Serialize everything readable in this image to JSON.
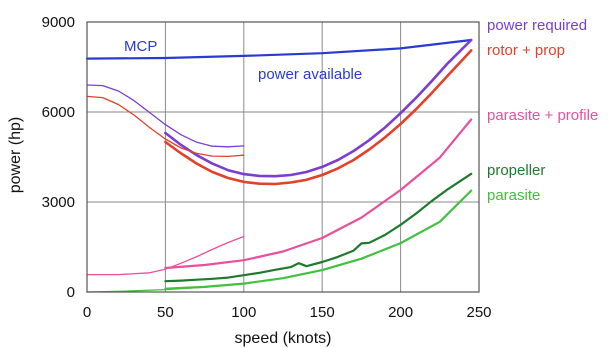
{
  "chart_data": {
    "type": "line",
    "xlabel": "speed (knots)",
    "ylabel": "power (hp)",
    "xlim": [
      0,
      250
    ],
    "ylim": [
      0,
      9000
    ],
    "xticks": [
      "0",
      "50",
      "100",
      "150",
      "200",
      "250"
    ],
    "yticks": [
      "0",
      "3000",
      "6000",
      "9000"
    ],
    "grid": "on",
    "legend": "right",
    "series": [
      {
        "key": "mcp",
        "color": "#2b3bd1",
        "width": 2.2,
        "x": [
          0,
          50,
          100,
          150,
          200,
          245
        ],
        "y": [
          7780,
          7800,
          7870,
          7960,
          8120,
          8400
        ]
      },
      {
        "key": "preq",
        "name": "power required",
        "color": "#7a3fd0",
        "width": 2.6,
        "x": [
          50,
          60,
          70,
          80,
          90,
          100,
          110,
          120,
          130,
          140,
          150,
          160,
          170,
          180,
          190,
          200,
          210,
          220,
          230,
          245
        ],
        "y": [
          5300,
          4900,
          4560,
          4280,
          4060,
          3930,
          3870,
          3860,
          3900,
          4000,
          4170,
          4400,
          4700,
          5060,
          5480,
          5960,
          6480,
          7040,
          7620,
          8400
        ]
      },
      {
        "key": "rotor",
        "name": "rotor + prop",
        "color": "#e2412a",
        "width": 2.6,
        "x": [
          50,
          60,
          70,
          80,
          90,
          100,
          110,
          120,
          130,
          140,
          150,
          160,
          170,
          180,
          190,
          200,
          210,
          220,
          230,
          245
        ],
        "y": [
          5000,
          4620,
          4280,
          4000,
          3800,
          3670,
          3610,
          3600,
          3650,
          3740,
          3900,
          4120,
          4400,
          4750,
          5150,
          5600,
          6100,
          6640,
          7210,
          8050
        ]
      },
      {
        "key": "preq_lo",
        "color": "#7a3fd0",
        "width": 1.3,
        "x": [
          0,
          10,
          20,
          30,
          40,
          50,
          60,
          70,
          80,
          90,
          100
        ],
        "y": [
          6900,
          6880,
          6700,
          6380,
          5980,
          5580,
          5240,
          4990,
          4860,
          4840,
          4870
        ]
      },
      {
        "key": "rotor_lo",
        "color": "#e2412a",
        "width": 1.3,
        "x": [
          0,
          10,
          20,
          30,
          40,
          50,
          60,
          70,
          80,
          90,
          100
        ],
        "y": [
          6520,
          6480,
          6250,
          5900,
          5480,
          5100,
          4800,
          4620,
          4530,
          4520,
          4560
        ]
      },
      {
        "key": "paraprof",
        "name": "parasite + profile",
        "color": "#e8509c",
        "width": 2.2,
        "x": [
          50,
          75,
          100,
          125,
          150,
          175,
          200,
          225,
          245
        ],
        "y": [
          800,
          900,
          1060,
          1350,
          1800,
          2480,
          3400,
          4480,
          5750
        ]
      },
      {
        "key": "paraprof_lo",
        "color": "#e8509c",
        "width": 1.3,
        "x": [
          0,
          20,
          40,
          50,
          60,
          70,
          80,
          90,
          100
        ],
        "y": [
          580,
          580,
          640,
          760,
          960,
          1180,
          1420,
          1650,
          1850
        ]
      },
      {
        "key": "prop",
        "name": "propeller",
        "color": "#1f7a2e",
        "width": 2.2,
        "x": [
          50,
          60,
          70,
          80,
          90,
          100,
          110,
          120,
          130,
          135,
          140,
          150,
          160,
          170,
          175,
          180,
          190,
          200,
          210,
          220,
          230,
          245
        ],
        "y": [
          360,
          380,
          410,
          440,
          480,
          560,
          640,
          740,
          830,
          960,
          860,
          1000,
          1170,
          1380,
          1620,
          1640,
          1900,
          2240,
          2620,
          3040,
          3420,
          3940
        ]
      },
      {
        "key": "para",
        "name": "parasite",
        "color": "#41c13f",
        "width": 2.2,
        "x": [
          50,
          75,
          100,
          125,
          150,
          175,
          200,
          225,
          245
        ],
        "y": [
          110,
          170,
          280,
          460,
          730,
          1110,
          1630,
          2340,
          3380
        ]
      },
      {
        "key": "para_lo",
        "color": "#41c13f",
        "width": 1.3,
        "x": [
          0,
          25,
          50,
          75,
          100
        ],
        "y": [
          0,
          30,
          80,
          160,
          280
        ]
      }
    ],
    "annotations": [
      {
        "text": "MCP",
        "color": "#2b3bd1"
      },
      {
        "text": "power available",
        "color": "#2b3bd1"
      }
    ]
  }
}
